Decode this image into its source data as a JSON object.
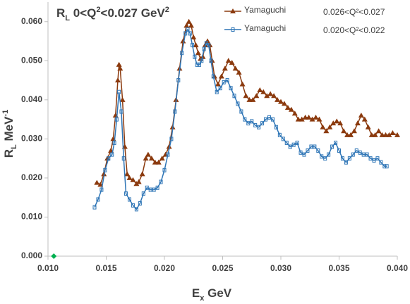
{
  "chart_data": {
    "type": "scatter",
    "title": [
      "R",
      "L",
      "  0<Q",
      "2",
      "<0.027 GeV",
      "2"
    ],
    "title_styles": [
      "normal",
      "sub",
      "normal",
      "sup",
      "normal",
      "sup"
    ],
    "xlabel": [
      "E",
      "x",
      " GeV"
    ],
    "xlabel_styles": [
      "normal",
      "sub",
      "normal"
    ],
    "ylabel": [
      "R",
      "L",
      " MeV",
      "-1"
    ],
    "ylabel_styles": [
      "normal",
      "sub",
      "normal",
      "sup"
    ],
    "xlim": [
      0.01,
      0.04
    ],
    "ylim": [
      0.0,
      0.065
    ],
    "xticks": [
      {
        "value": 0.01,
        "label": "0.010"
      },
      {
        "value": 0.015,
        "label": "0.015"
      },
      {
        "value": 0.02,
        "label": "0.020"
      },
      {
        "value": 0.025,
        "label": "0.025"
      },
      {
        "value": 0.03,
        "label": "0.030"
      },
      {
        "value": 0.035,
        "label": "0.035"
      },
      {
        "value": 0.04,
        "label": "0.040"
      }
    ],
    "yticks": [
      {
        "value": 0.0,
        "label": "0.000"
      },
      {
        "value": 0.01,
        "label": "0.010"
      },
      {
        "value": 0.02,
        "label": "0.020"
      },
      {
        "value": 0.03,
        "label": "0.030"
      },
      {
        "value": 0.04,
        "label": "0.040"
      },
      {
        "value": 0.05,
        "label": "0.050"
      },
      {
        "value": 0.06,
        "label": "0.060"
      }
    ],
    "grid": false,
    "series": [
      {
        "name": "Yamaguchi",
        "annotation": "0.026<Q²<0.027",
        "color": "#8b3a0e",
        "marker": "triangle",
        "x": [
          0.0142,
          0.0145,
          0.0148,
          0.0151,
          0.0154,
          0.0156,
          0.0158,
          0.016,
          0.0161,
          0.0162,
          0.0164,
          0.0166,
          0.0168,
          0.017,
          0.0173,
          0.0176,
          0.0178,
          0.0181,
          0.0184,
          0.0186,
          0.0189,
          0.0192,
          0.0195,
          0.0198,
          0.0201,
          0.0204,
          0.0207,
          0.021,
          0.0213,
          0.0216,
          0.0219,
          0.0221,
          0.0223,
          0.0225,
          0.0227,
          0.0229,
          0.0231,
          0.0233,
          0.0235,
          0.0237,
          0.0239,
          0.0241,
          0.0243,
          0.0246,
          0.0249,
          0.0252,
          0.0255,
          0.0258,
          0.0261,
          0.0264,
          0.0267,
          0.027,
          0.0273,
          0.0276,
          0.0279,
          0.0282,
          0.0285,
          0.0288,
          0.0291,
          0.0294,
          0.0297,
          0.03,
          0.0303,
          0.0306,
          0.0309,
          0.0312,
          0.0315,
          0.0318,
          0.0321,
          0.0324,
          0.0327,
          0.033,
          0.0333,
          0.0336,
          0.0339,
          0.0342,
          0.0345,
          0.0348,
          0.0351,
          0.0354,
          0.0357,
          0.036,
          0.0363,
          0.0366,
          0.0369,
          0.0372,
          0.0375,
          0.0378,
          0.0381,
          0.0384,
          0.0387,
          0.039,
          0.0393,
          0.0396,
          0.04
        ],
        "values": [
          0.0188,
          0.0183,
          0.021,
          0.025,
          0.027,
          0.03,
          0.036,
          0.045,
          0.049,
          0.048,
          0.04,
          0.028,
          0.021,
          0.02,
          0.0195,
          0.0185,
          0.019,
          0.021,
          0.025,
          0.026,
          0.025,
          0.024,
          0.024,
          0.025,
          0.026,
          0.028,
          0.033,
          0.04,
          0.048,
          0.055,
          0.059,
          0.06,
          0.059,
          0.056,
          0.054,
          0.052,
          0.0505,
          0.051,
          0.054,
          0.055,
          0.054,
          0.05,
          0.046,
          0.044,
          0.046,
          0.048,
          0.05,
          0.0495,
          0.048,
          0.047,
          0.044,
          0.041,
          0.04,
          0.04,
          0.041,
          0.0425,
          0.042,
          0.041,
          0.0415,
          0.041,
          0.04,
          0.0395,
          0.039,
          0.038,
          0.0375,
          0.0365,
          0.035,
          0.035,
          0.0355,
          0.0355,
          0.035,
          0.0355,
          0.035,
          0.033,
          0.032,
          0.033,
          0.034,
          0.0345,
          0.034,
          0.032,
          0.031,
          0.031,
          0.032,
          0.034,
          0.036,
          0.035,
          0.033,
          0.031,
          0.031,
          0.032,
          0.031,
          0.031,
          0.031,
          0.0315,
          0.031
        ]
      },
      {
        "name": "Yamaguchi",
        "annotation": "0.020<Q²<0.022",
        "color": "#2e75b6",
        "marker": "dash",
        "x": [
          0.014,
          0.0143,
          0.0146,
          0.0149,
          0.0152,
          0.0155,
          0.0157,
          0.0159,
          0.0161,
          0.0163,
          0.0165,
          0.0167,
          0.017,
          0.0173,
          0.0176,
          0.0179,
          0.0182,
          0.0185,
          0.0188,
          0.0191,
          0.0194,
          0.0197,
          0.02,
          0.0203,
          0.0206,
          0.0209,
          0.0212,
          0.0215,
          0.0218,
          0.022,
          0.0222,
          0.0224,
          0.0226,
          0.0228,
          0.023,
          0.0232,
          0.0234,
          0.0236,
          0.0238,
          0.024,
          0.0242,
          0.0245,
          0.0248,
          0.0251,
          0.0254,
          0.0257,
          0.026,
          0.0263,
          0.0266,
          0.0269,
          0.0272,
          0.0275,
          0.0278,
          0.0281,
          0.0284,
          0.0287,
          0.029,
          0.0293,
          0.0296,
          0.0299,
          0.0302,
          0.0305,
          0.0308,
          0.0311,
          0.0314,
          0.0317,
          0.032,
          0.0323,
          0.0326,
          0.0329,
          0.0332,
          0.0335,
          0.0338,
          0.0341,
          0.0344,
          0.0347,
          0.035,
          0.0353,
          0.0356,
          0.0359,
          0.0362,
          0.0365,
          0.0368,
          0.0371,
          0.0374,
          0.0377,
          0.038,
          0.0383,
          0.0386,
          0.0389,
          0.0391
        ],
        "values": [
          0.0125,
          0.0145,
          0.017,
          0.022,
          0.025,
          0.026,
          0.029,
          0.035,
          0.042,
          0.037,
          0.025,
          0.016,
          0.0145,
          0.013,
          0.012,
          0.0135,
          0.016,
          0.0175,
          0.017,
          0.017,
          0.0175,
          0.019,
          0.022,
          0.026,
          0.03,
          0.037,
          0.045,
          0.052,
          0.057,
          0.058,
          0.057,
          0.054,
          0.051,
          0.049,
          0.049,
          0.05,
          0.053,
          0.0545,
          0.054,
          0.05,
          0.046,
          0.042,
          0.043,
          0.0445,
          0.045,
          0.043,
          0.041,
          0.039,
          0.037,
          0.035,
          0.034,
          0.0345,
          0.0335,
          0.033,
          0.034,
          0.035,
          0.0355,
          0.035,
          0.033,
          0.031,
          0.03,
          0.029,
          0.028,
          0.0285,
          0.029,
          0.0265,
          0.026,
          0.027,
          0.028,
          0.028,
          0.027,
          0.0255,
          0.025,
          0.026,
          0.028,
          0.029,
          0.027,
          0.025,
          0.024,
          0.025,
          0.026,
          0.027,
          0.0265,
          0.026,
          0.026,
          0.025,
          0.0245,
          0.025,
          0.024,
          0.023,
          0.023
        ]
      }
    ],
    "extra_point": {
      "x": 0.0105,
      "y": 0.0,
      "color": "#00b050"
    }
  }
}
